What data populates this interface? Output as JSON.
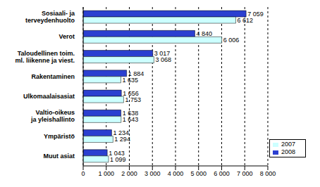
{
  "chart_data": {
    "type": "bar",
    "orientation": "horizontal",
    "categories": [
      "Sosiaali- ja\nterveydenhuolto",
      "Verot",
      "Taloudellinen toim.\nml. liikenne ja viest.",
      "Rakentaminen",
      "Ulkomaalaisasiat",
      "Valtio-oikeus\nja yleishallinto",
      "Ympäristö",
      "Muut asiat"
    ],
    "series": [
      {
        "name": "2008",
        "color": "#2b3fd0",
        "values": [
          7059,
          4840,
          3017,
          1884,
          1656,
          1638,
          1234,
          1043
        ],
        "value_labels": [
          "7 059",
          "4 840",
          "3 017",
          "1 884",
          "1 656",
          "1 638",
          "1 234",
          "1 043"
        ]
      },
      {
        "name": "2007",
        "color": "#ccffff",
        "values": [
          6612,
          6006,
          3068,
          1635,
          1753,
          1643,
          1294,
          1099
        ],
        "value_labels": [
          "6 612",
          "6 006",
          "3 068",
          "1 635",
          "1 753",
          "1 643",
          "1 294",
          "1 099"
        ]
      }
    ],
    "xlim": [
      0,
      8000
    ],
    "xticks": [
      0,
      {
        "value": 1000,
        "label": "1 000"
      },
      {
        "value": 2000,
        "label": "2 000"
      },
      {
        "value": 3000,
        "label": "3 000"
      },
      {
        "value": 4000,
        "label": "4 000"
      },
      {
        "value": 5000,
        "label": "5 000"
      },
      {
        "value": 6000,
        "label": "6 000"
      },
      {
        "value": 7000,
        "label": "7 000"
      },
      {
        "value": 8000,
        "label": "8 000"
      }
    ],
    "grid": true,
    "legend": "bottom-right",
    "data_labels": true
  }
}
